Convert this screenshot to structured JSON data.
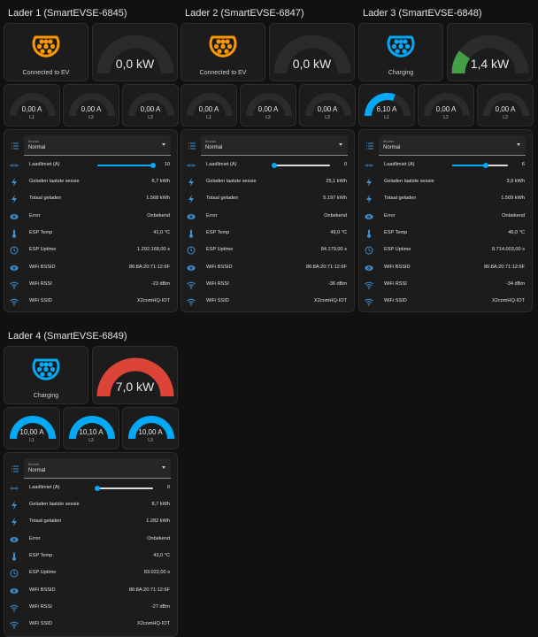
{
  "colors": {
    "connected": "#ff9800",
    "charging": "#03a9f4",
    "gauge_bg": "#2b2b2b",
    "power_low": "#43a047",
    "power_high": "#db4437",
    "current": "#03a9f4",
    "icon": "#3f8fd0"
  },
  "gauge_ranges": {
    "power_max_kw": 7.0,
    "current_max_a": 10
  },
  "chargers": [
    {
      "title": "Lader 1 (SmartEVSE-6845)",
      "state": "Connected to EV",
      "state_color": "connected",
      "power_kw": 0.0,
      "power_text": "0,0 kW",
      "power_color": "power_low",
      "currents": [
        {
          "label": "L1",
          "value": 0,
          "text": "0,00 A"
        },
        {
          "label": "L2",
          "value": 0,
          "text": "0,00 A"
        },
        {
          "label": "L3",
          "value": 0,
          "text": "0,00 A"
        }
      ],
      "mode": {
        "label": "Modus",
        "value": "Normal"
      },
      "limit": {
        "label": "Laadlimiet (A)",
        "value": 10,
        "min": 0,
        "max": 10,
        "text": "10"
      },
      "rows": [
        {
          "icon": "flash-icon",
          "name": "Geladen laatste sessie",
          "value": "6,7 kWh"
        },
        {
          "icon": "flash-icon",
          "name": "Totaal geladen",
          "value": "1.568 kWh"
        },
        {
          "icon": "eye-icon",
          "name": "Error",
          "value": "Onbekend"
        },
        {
          "icon": "thermometer-icon",
          "name": "ESP Temp",
          "value": "41,0 °C"
        },
        {
          "icon": "clock-icon",
          "name": "ESP Uptime",
          "value": "1.292.168,00 s"
        },
        {
          "icon": "eye-icon",
          "name": "WiFi BSSID",
          "value": "86:8A:20:71:12:6F"
        },
        {
          "icon": "wifi-icon",
          "name": "WiFi RSSI",
          "value": "-23 dBm"
        },
        {
          "icon": "wifi-icon",
          "name": "WiFi SSID",
          "value": "X2comHQ-IOT"
        }
      ]
    },
    {
      "title": "Lader 2 (SmartEVSE-6847)",
      "state": "Connected to EV",
      "state_color": "connected",
      "power_kw": 0.0,
      "power_text": "0,0 kW",
      "power_color": "power_low",
      "currents": [
        {
          "label": "L1",
          "value": 0,
          "text": "0,00 A"
        },
        {
          "label": "L2",
          "value": 0,
          "text": "0,00 A"
        },
        {
          "label": "L3",
          "value": 0,
          "text": "0,00 A"
        }
      ],
      "mode": {
        "label": "Modus",
        "value": "Normal"
      },
      "limit": {
        "label": "Laadlimiet (A)",
        "value": 0,
        "min": 0,
        "max": 10,
        "text": "0"
      },
      "rows": [
        {
          "icon": "flash-icon",
          "name": "Geladen laatste sessie",
          "value": "25,1 kWh"
        },
        {
          "icon": "flash-icon",
          "name": "Totaal geladen",
          "value": "5.197 kWh"
        },
        {
          "icon": "eye-icon",
          "name": "Error",
          "value": "Onbekend"
        },
        {
          "icon": "thermometer-icon",
          "name": "ESP Temp",
          "value": "49,0 °C"
        },
        {
          "icon": "clock-icon",
          "name": "ESP Uptime",
          "value": "84.179,00 s"
        },
        {
          "icon": "eye-icon",
          "name": "WiFi BSSID",
          "value": "86:8A:20:71:12:6F"
        },
        {
          "icon": "wifi-icon",
          "name": "WiFi RSSI",
          "value": "-36 dBm"
        },
        {
          "icon": "wifi-icon",
          "name": "WiFi SSID",
          "value": "X2comHQ-IOT"
        }
      ]
    },
    {
      "title": "Lader 3 (SmartEVSE-6848)",
      "state": "Charging",
      "state_color": "charging",
      "power_kw": 1.4,
      "power_text": "1,4 kW",
      "power_color": "power_low",
      "currents": [
        {
          "label": "L1",
          "value": 6.1,
          "text": "6,10 A"
        },
        {
          "label": "L2",
          "value": 0,
          "text": "0,00 A"
        },
        {
          "label": "L3",
          "value": 0,
          "text": "0,00 A"
        }
      ],
      "mode": {
        "label": "Modus",
        "value": "Normal"
      },
      "limit": {
        "label": "Laadlimiet (A)",
        "value": 6,
        "min": 0,
        "max": 10,
        "text": "6"
      },
      "rows": [
        {
          "icon": "flash-icon",
          "name": "Geladen laatste sessie",
          "value": "3,9 kWh"
        },
        {
          "icon": "flash-icon",
          "name": "Totaal geladen",
          "value": "1.509 kWh"
        },
        {
          "icon": "eye-icon",
          "name": "Error",
          "value": "Onbekend"
        },
        {
          "icon": "thermometer-icon",
          "name": "ESP Temp",
          "value": "46,0 °C"
        },
        {
          "icon": "clock-icon",
          "name": "ESP Uptime",
          "value": "8.714.003,00 s"
        },
        {
          "icon": "eye-icon",
          "name": "WiFi BSSID",
          "value": "86:8A:20:71:12:6F"
        },
        {
          "icon": "wifi-icon",
          "name": "WiFi RSSI",
          "value": "-34 dBm"
        },
        {
          "icon": "wifi-icon",
          "name": "WiFi SSID",
          "value": "X2comHQ-IOT"
        }
      ]
    },
    {
      "title": "Lader 4 (SmartEVSE-6849)",
      "state": "Charging",
      "state_color": "charging",
      "power_kw": 7.0,
      "power_text": "7,0 kW",
      "power_color": "power_high",
      "currents": [
        {
          "label": "L1",
          "value": 10.0,
          "text": "10,00 A"
        },
        {
          "label": "L2",
          "value": 10.1,
          "text": "10,10 A"
        },
        {
          "label": "L3",
          "value": 10.0,
          "text": "10,00 A"
        }
      ],
      "mode": {
        "label": "Modus",
        "value": "Normal"
      },
      "limit": {
        "label": "Laadlimiet (A)",
        "value": 0,
        "min": 0,
        "max": 10,
        "text": "0"
      },
      "rows": [
        {
          "icon": "flash-icon",
          "name": "Geladen laatste sessie",
          "value": "8,7 kWh"
        },
        {
          "icon": "flash-icon",
          "name": "Totaal geladen",
          "value": "1.282 kWh"
        },
        {
          "icon": "eye-icon",
          "name": "Error",
          "value": "Onbekend"
        },
        {
          "icon": "thermometer-icon",
          "name": "ESP Temp",
          "value": "43,0 °C"
        },
        {
          "icon": "clock-icon",
          "name": "ESP Uptime",
          "value": "83.022,00 s"
        },
        {
          "icon": "eye-icon",
          "name": "WiFi BSSID",
          "value": "86:8A:20:71:12:6F"
        },
        {
          "icon": "wifi-icon",
          "name": "WiFi RSSI",
          "value": "-27 dBm"
        },
        {
          "icon": "wifi-icon",
          "name": "WiFi SSID",
          "value": "X2comHQ-IOT"
        }
      ]
    }
  ]
}
